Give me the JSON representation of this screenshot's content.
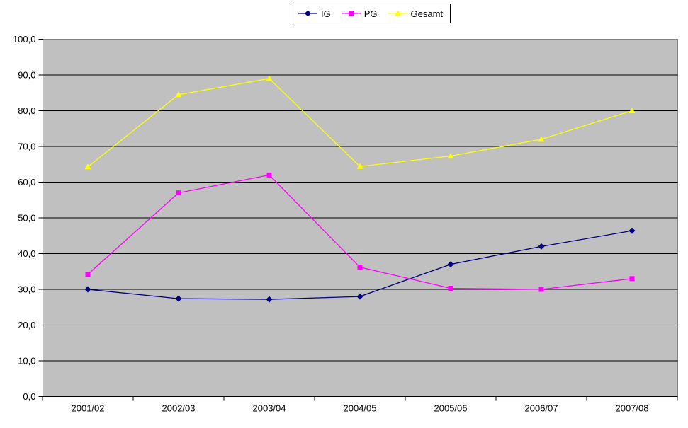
{
  "chart_data": {
    "type": "line",
    "title": "",
    "xlabel": "",
    "ylabel": "",
    "categories": [
      "2001/02",
      "2002/03",
      "2003/04",
      "2004/05",
      "2005/06",
      "2006/07",
      "2007/08"
    ],
    "series": [
      {
        "name": "IG",
        "color": "#000080",
        "marker": "diamond",
        "values": [
          30.0,
          27.4,
          27.2,
          28.0,
          37.0,
          42.0,
          46.4
        ]
      },
      {
        "name": "PG",
        "color": "#FF00FF",
        "marker": "square",
        "values": [
          34.2,
          57.0,
          62.0,
          36.2,
          30.3,
          30.0,
          33.0
        ]
      },
      {
        "name": "Gesamt",
        "color": "#FFFF00",
        "marker": "triangle",
        "values": [
          64.3,
          84.5,
          89.0,
          64.4,
          67.3,
          72.0,
          80.0
        ]
      }
    ],
    "ylim": [
      0,
      100
    ],
    "y_step": 10,
    "y_tick_labels": [
      "0,0",
      "10,0",
      "20,0",
      "30,0",
      "40,0",
      "50,0",
      "60,0",
      "70,0",
      "80,0",
      "90,0",
      "100,0"
    ],
    "grid": true,
    "legend_position": "top-center",
    "colors": {
      "plot_bg": "#C0C0C0",
      "plot_border": "#808080",
      "gridline": "#000000",
      "axis": "#000000",
      "text": "#000000",
      "background": "#FFFFFF"
    }
  }
}
